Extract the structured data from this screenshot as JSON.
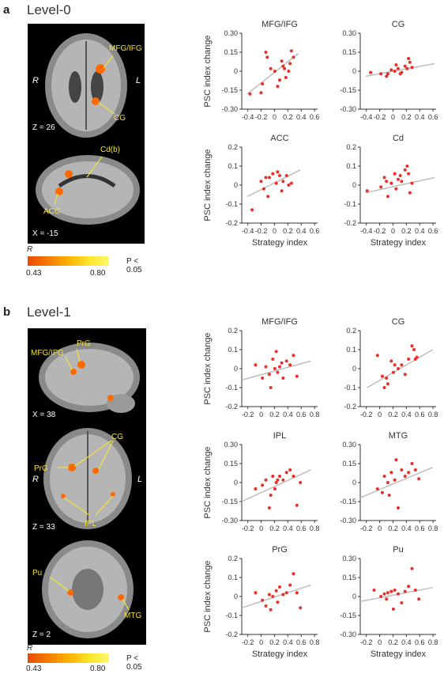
{
  "panel_a": {
    "letter": "a",
    "title": "Level-0",
    "slice_axial": {
      "coord": "Z = 26",
      "left": "R",
      "right": "L",
      "labels": [
        "MFG/IFG",
        "CG"
      ]
    },
    "slice_sagittal": {
      "coord": "X = -15",
      "labels": [
        "Cd(b)",
        "ACC"
      ]
    },
    "colorbar": {
      "label": "R",
      "min": "0.43",
      "max": "0.80",
      "p": "P < 0.05"
    }
  },
  "panel_b": {
    "letter": "b",
    "title": "Level-1",
    "slice_sagittal": {
      "coord": "X = 38",
      "labels": [
        "PrG",
        "MFG/IFG"
      ]
    },
    "slice_axial1": {
      "coord": "Z = 33",
      "left": "R",
      "right": "L",
      "labels": [
        "CG",
        "PrG",
        "IPL"
      ]
    },
    "slice_axial2": {
      "coord": "Z = 2",
      "labels": [
        "Pu",
        "MTG"
      ]
    },
    "colorbar": {
      "label": "R",
      "min": "0.43",
      "max": "0.80",
      "p": "P < 0.05"
    }
  },
  "colors": {
    "point": "#e8302a",
    "fit": "#bdbdbd",
    "overlay": "#f5e23a",
    "activation": "#ff6a00"
  },
  "chart_data": [
    {
      "type": "scatter",
      "title": "MFG/IFG",
      "ylabel": "PSC index change",
      "xlabel": "",
      "xticks": [
        "-0.4",
        "-0.2",
        "0",
        "0.2",
        "0.4",
        "0.6"
      ],
      "yticks": [
        "0.30",
        "0.15",
        "0",
        "-0.15",
        "-0.30"
      ],
      "xlim": [
        -0.5,
        0.6
      ],
      "ylim": [
        -0.3,
        0.3
      ],
      "fit": [
        [
          -0.42,
          -0.18
        ],
        [
          0.32,
          0.14
        ]
      ],
      "x": [
        -0.38,
        -0.22,
        -0.2,
        -0.15,
        -0.13,
        -0.08,
        -0.02,
        0.02,
        0.05,
        0.08,
        0.1,
        0.12,
        0.14,
        0.18,
        0.2,
        0.22,
        0.25
      ],
      "y": [
        -0.18,
        -0.17,
        -0.1,
        0.15,
        0.11,
        0.02,
        0.0,
        -0.12,
        -0.07,
        0.08,
        0.04,
        0.02,
        -0.05,
        0.0,
        0.06,
        0.16,
        0.11
      ]
    },
    {
      "type": "scatter",
      "title": "CG",
      "ylabel": "",
      "xlabel": "",
      "xticks": [
        "-0.4",
        "-0.2",
        "0",
        "0.2",
        "0.4",
        "0.6"
      ],
      "yticks": [
        "0.30",
        "0.15",
        "0",
        "-0.15",
        "-0.30"
      ],
      "xlim": [
        -0.5,
        0.6
      ],
      "ylim": [
        -0.3,
        0.3
      ],
      "fit": [
        [
          -0.42,
          -0.04
        ],
        [
          0.58,
          0.06
        ]
      ],
      "x": [
        -0.35,
        -0.2,
        -0.12,
        -0.1,
        -0.05,
        0.0,
        0.02,
        0.05,
        0.08,
        0.1,
        0.15,
        0.18,
        0.2,
        0.22,
        0.25
      ],
      "y": [
        -0.01,
        -0.02,
        -0.04,
        -0.02,
        0.01,
        0.0,
        0.05,
        0.02,
        -0.02,
        -0.01,
        0.04,
        0.02,
        0.1,
        0.07,
        0.03
      ]
    },
    {
      "type": "scatter",
      "title": "ACC",
      "ylabel": "PSC index change",
      "xlabel": "Strategy index",
      "xticks": [
        "-0.4",
        "-0.2",
        "0",
        "0.2",
        "0.4",
        "0.6"
      ],
      "yticks": [
        "0.2",
        "0.1",
        "0",
        "-0.1",
        "-0.2"
      ],
      "xlim": [
        -0.5,
        0.6
      ],
      "ylim": [
        -0.2,
        0.2
      ],
      "fit": [
        [
          -0.42,
          -0.06
        ],
        [
          0.35,
          0.08
        ]
      ],
      "x": [
        -0.35,
        -0.22,
        -0.18,
        -0.15,
        -0.12,
        -0.1,
        -0.05,
        0.0,
        0.02,
        0.05,
        0.08,
        0.1,
        0.15,
        0.18,
        0.22
      ],
      "y": [
        -0.13,
        0.02,
        -0.02,
        0.04,
        -0.06,
        0.04,
        0.06,
        0.01,
        0.07,
        0.05,
        -0.03,
        0.02,
        0.05,
        0.0,
        0.01
      ]
    },
    {
      "type": "scatter",
      "title": "Cd",
      "ylabel": "",
      "xlabel": "Strategy index",
      "xticks": [
        "-0.4",
        "-0.2",
        "0",
        "0.2",
        "0.4",
        "0.6"
      ],
      "yticks": [
        "0.2",
        "0.1",
        "0",
        "-0.1",
        "-0.2"
      ],
      "xlim": [
        -0.5,
        0.6
      ],
      "ylim": [
        -0.2,
        0.2
      ],
      "fit": [
        [
          -0.42,
          -0.04
        ],
        [
          0.58,
          0.04
        ]
      ],
      "x": [
        -0.4,
        -0.2,
        -0.15,
        -0.12,
        -0.1,
        -0.05,
        0.0,
        0.02,
        0.05,
        0.08,
        0.1,
        0.15,
        0.18,
        0.2,
        0.22,
        0.25
      ],
      "y": [
        -0.03,
        -0.01,
        0.04,
        0.02,
        -0.06,
        0.01,
        0.06,
        -0.02,
        0.03,
        0.05,
        0.02,
        0.08,
        0.1,
        0.06,
        -0.04,
        0.01
      ]
    },
    {
      "type": "scatter",
      "title": "MFG/IFG",
      "ylabel": "PSC index change",
      "xlabel": "",
      "xticks": [
        "-0.2",
        "0",
        "0.2",
        "0.4",
        "0.6",
        "0.8"
      ],
      "yticks": [
        "0.2",
        "0.1",
        "0",
        "-0.1",
        "-0.2"
      ],
      "xlim": [
        -0.3,
        0.8
      ],
      "ylim": [
        -0.2,
        0.2
      ],
      "fit": [
        [
          -0.3,
          -0.06
        ],
        [
          0.7,
          0.04
        ]
      ],
      "x": [
        -0.1,
        0.0,
        0.05,
        0.1,
        0.12,
        0.15,
        0.18,
        0.2,
        0.22,
        0.25,
        0.28,
        0.3,
        0.35,
        0.4,
        0.45,
        0.5
      ],
      "y": [
        0.02,
        -0.05,
        0.01,
        -0.03,
        -0.1,
        0.05,
        0.0,
        0.09,
        -0.02,
        0.01,
        0.03,
        -0.05,
        0.04,
        0.02,
        0.07,
        -0.04
      ]
    },
    {
      "type": "scatter",
      "title": "CG",
      "ylabel": "",
      "xlabel": "",
      "xticks": [
        "-0.2",
        "0",
        "0.2",
        "0.4",
        "0.6",
        "0.8"
      ],
      "yticks": [
        "0.2",
        "0.1",
        "0",
        "-0.1",
        "-0.2"
      ],
      "xlim": [
        -0.3,
        0.8
      ],
      "ylim": [
        -0.2,
        0.2
      ],
      "fit": [
        [
          -0.2,
          -0.1
        ],
        [
          0.75,
          0.1
        ]
      ],
      "x": [
        -0.05,
        0.02,
        0.05,
        0.08,
        0.1,
        0.15,
        0.18,
        0.2,
        0.25,
        0.3,
        0.35,
        0.4,
        0.45,
        0.48,
        0.5,
        0.52
      ],
      "y": [
        0.07,
        -0.04,
        -0.1,
        -0.05,
        -0.08,
        0.04,
        -0.02,
        0.02,
        0.0,
        0.02,
        -0.03,
        0.05,
        0.12,
        0.1,
        0.05,
        0.06
      ]
    },
    {
      "type": "scatter",
      "title": "IPL",
      "ylabel": "PSC index change",
      "xlabel": "",
      "xticks": [
        "-0.2",
        "0",
        "0.2",
        "0.4",
        "0.6",
        "0.8"
      ],
      "yticks": [
        "0.30",
        "0.15",
        "0",
        "-0.15",
        "-0.30"
      ],
      "xlim": [
        -0.3,
        0.8
      ],
      "ylim": [
        -0.3,
        0.3
      ],
      "fit": [
        [
          -0.3,
          -0.15
        ],
        [
          0.7,
          0.1
        ]
      ],
      "x": [
        -0.1,
        0.0,
        0.05,
        0.1,
        0.12,
        0.15,
        0.18,
        0.2,
        0.22,
        0.25,
        0.3,
        0.35,
        0.4,
        0.45,
        0.5,
        0.55
      ],
      "y": [
        -0.05,
        -0.02,
        0.02,
        -0.2,
        -0.1,
        0.05,
        -0.05,
        0.0,
        0.02,
        0.05,
        0.02,
        0.08,
        0.1,
        0.05,
        -0.18,
        0.0
      ]
    },
    {
      "type": "scatter",
      "title": "MTG",
      "ylabel": "",
      "xlabel": "",
      "xticks": [
        "-0.2",
        "0",
        "0.2",
        "0.4",
        "0.6",
        "0.8"
      ],
      "yticks": [
        "0.30",
        "0.15",
        "0",
        "-0.15",
        "-0.30"
      ],
      "xlim": [
        -0.3,
        0.8
      ],
      "ylim": [
        -0.3,
        0.3
      ],
      "fit": [
        [
          -0.3,
          -0.12
        ],
        [
          0.75,
          0.12
        ]
      ],
      "x": [
        -0.05,
        0.02,
        0.05,
        0.1,
        0.12,
        0.15,
        0.2,
        0.22,
        0.25,
        0.3,
        0.35,
        0.4,
        0.45,
        0.5,
        0.55
      ],
      "y": [
        -0.05,
        -0.08,
        0.05,
        0.0,
        -0.1,
        0.08,
        0.02,
        0.18,
        -0.2,
        0.1,
        0.05,
        0.08,
        0.15,
        0.1,
        0.03
      ]
    },
    {
      "type": "scatter",
      "title": "PrG",
      "ylabel": "PSC index change",
      "xlabel": "Strategy index",
      "xticks": [
        "-0.2",
        "0",
        "0.2",
        "0.4",
        "0.6",
        "0.8"
      ],
      "yticks": [
        "0.2",
        "0.1",
        "0",
        "-0.1",
        "-0.2"
      ],
      "xlim": [
        -0.3,
        0.8
      ],
      "ylim": [
        -0.2,
        0.2
      ],
      "fit": [
        [
          -0.3,
          -0.06
        ],
        [
          0.7,
          0.06
        ]
      ],
      "x": [
        -0.1,
        0.0,
        0.05,
        0.1,
        0.12,
        0.15,
        0.2,
        0.22,
        0.25,
        0.3,
        0.35,
        0.4,
        0.45,
        0.5,
        0.55
      ],
      "y": [
        0.02,
        -0.02,
        -0.05,
        0.01,
        -0.07,
        0.0,
        0.03,
        -0.03,
        0.05,
        0.01,
        0.02,
        0.06,
        0.12,
        0.02,
        -0.06
      ]
    },
    {
      "type": "scatter",
      "title": "Pu",
      "ylabel": "",
      "xlabel": "Strategy index",
      "xticks": [
        "-0.2",
        "0",
        "0.2",
        "0.4",
        "0.6",
        "0.8"
      ],
      "yticks": [
        "0.30",
        "0.15",
        "0",
        "-0.15",
        "-0.30"
      ],
      "xlim": [
        -0.3,
        0.8
      ],
      "ylim": [
        -0.3,
        0.3
      ],
      "fit": [
        [
          -0.3,
          -0.04
        ],
        [
          0.75,
          0.07
        ]
      ],
      "x": [
        -0.1,
        0.0,
        0.05,
        0.08,
        0.1,
        0.15,
        0.18,
        0.2,
        0.25,
        0.3,
        0.35,
        0.4,
        0.45,
        0.5,
        0.55
      ],
      "y": [
        0.05,
        0.0,
        0.02,
        -0.02,
        0.03,
        0.04,
        -0.1,
        0.05,
        0.02,
        -0.05,
        0.04,
        0.08,
        0.22,
        0.05,
        -0.02
      ]
    }
  ]
}
